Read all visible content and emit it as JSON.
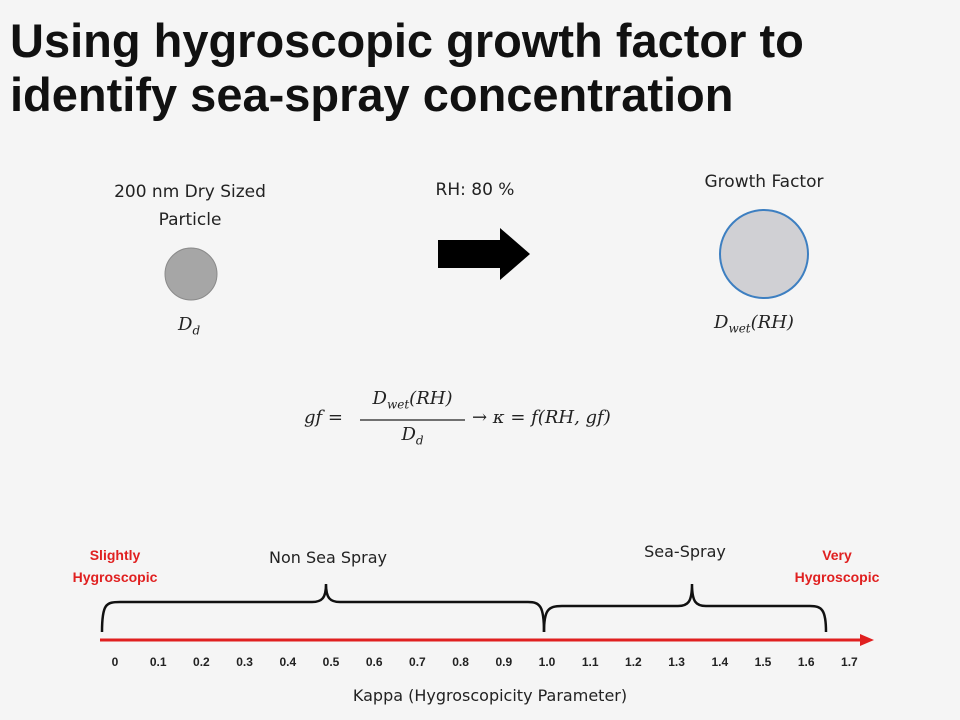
{
  "title": {
    "line1": "Using hygroscopic growth factor to",
    "line2": "identify sea-spray concentration"
  },
  "dry_particle": {
    "label_line1": "200 nm Dry Sized",
    "label_line2": "Particle",
    "symbol": "D",
    "symbol_sub": "d",
    "fill_color": "#a6a6a6"
  },
  "humidity": {
    "label": "RH: 80 %"
  },
  "wet_particle": {
    "label": "Growth Factor",
    "symbol": "D",
    "symbol_sub": "wet",
    "symbol_suffix": "(RH)",
    "fill_color": "#d0d0d4",
    "stroke_color": "#3d7fc1"
  },
  "equation": {
    "lhs": "gf =",
    "numerator": "D",
    "numerator_sub": "wet",
    "numerator_suffix": "(RH)",
    "denominator": "D",
    "denominator_sub": "d",
    "rhs": "→ κ = f(RH, gf)"
  },
  "scale": {
    "axis_label": "Kappa (Hygroscopicity Parameter)",
    "axis_color": "#e02020",
    "ticks": [
      "0",
      "0.1",
      "0.2",
      "0.3",
      "0.4",
      "0.5",
      "0.6",
      "0.7",
      "0.8",
      "0.9",
      "1.0",
      "1.1",
      "1.2",
      "1.3",
      "1.4",
      "1.5",
      "1.6",
      "1.7"
    ],
    "left_end": {
      "line1": "Slightly",
      "line2": "Hygroscopic"
    },
    "right_end": {
      "line1": "Very",
      "line2": "Hygroscopic"
    },
    "non_sea_spray": {
      "label": "Non Sea Spray",
      "from": 0,
      "to": 1.0
    },
    "sea_spray": {
      "label": "Sea-Spray",
      "from": 1.0,
      "to": 1.65
    }
  }
}
